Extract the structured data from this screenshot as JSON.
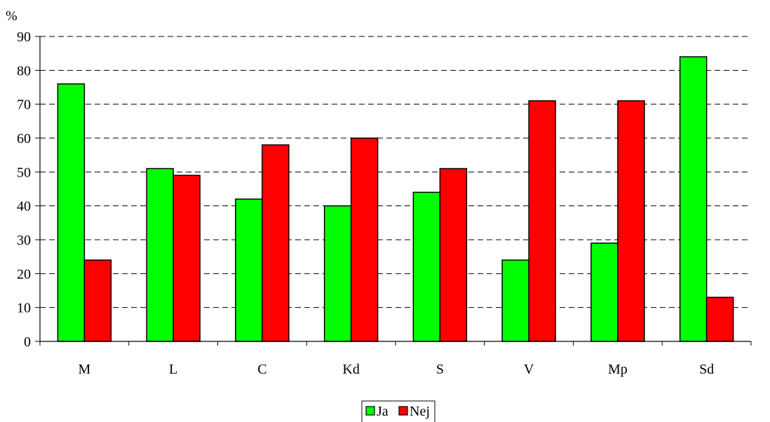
{
  "chart_data": {
    "type": "bar",
    "ylabel": "%",
    "ylim": [
      0,
      90
    ],
    "yticks": [
      0,
      10,
      20,
      30,
      40,
      50,
      60,
      70,
      80,
      90
    ],
    "categories": [
      "M",
      "L",
      "C",
      "Kd",
      "S",
      "V",
      "Mp",
      "Sd"
    ],
    "series": [
      {
        "name": "Ja",
        "color": "#00ff00",
        "values": [
          76,
          51,
          42,
          40,
          44,
          24,
          29,
          84
        ]
      },
      {
        "name": "Nej",
        "color": "#ff0000",
        "values": [
          24,
          49,
          58,
          60,
          51,
          71,
          71,
          13
        ]
      }
    ],
    "grid": "dashed-horizontal",
    "legend_position": "bottom-center"
  }
}
